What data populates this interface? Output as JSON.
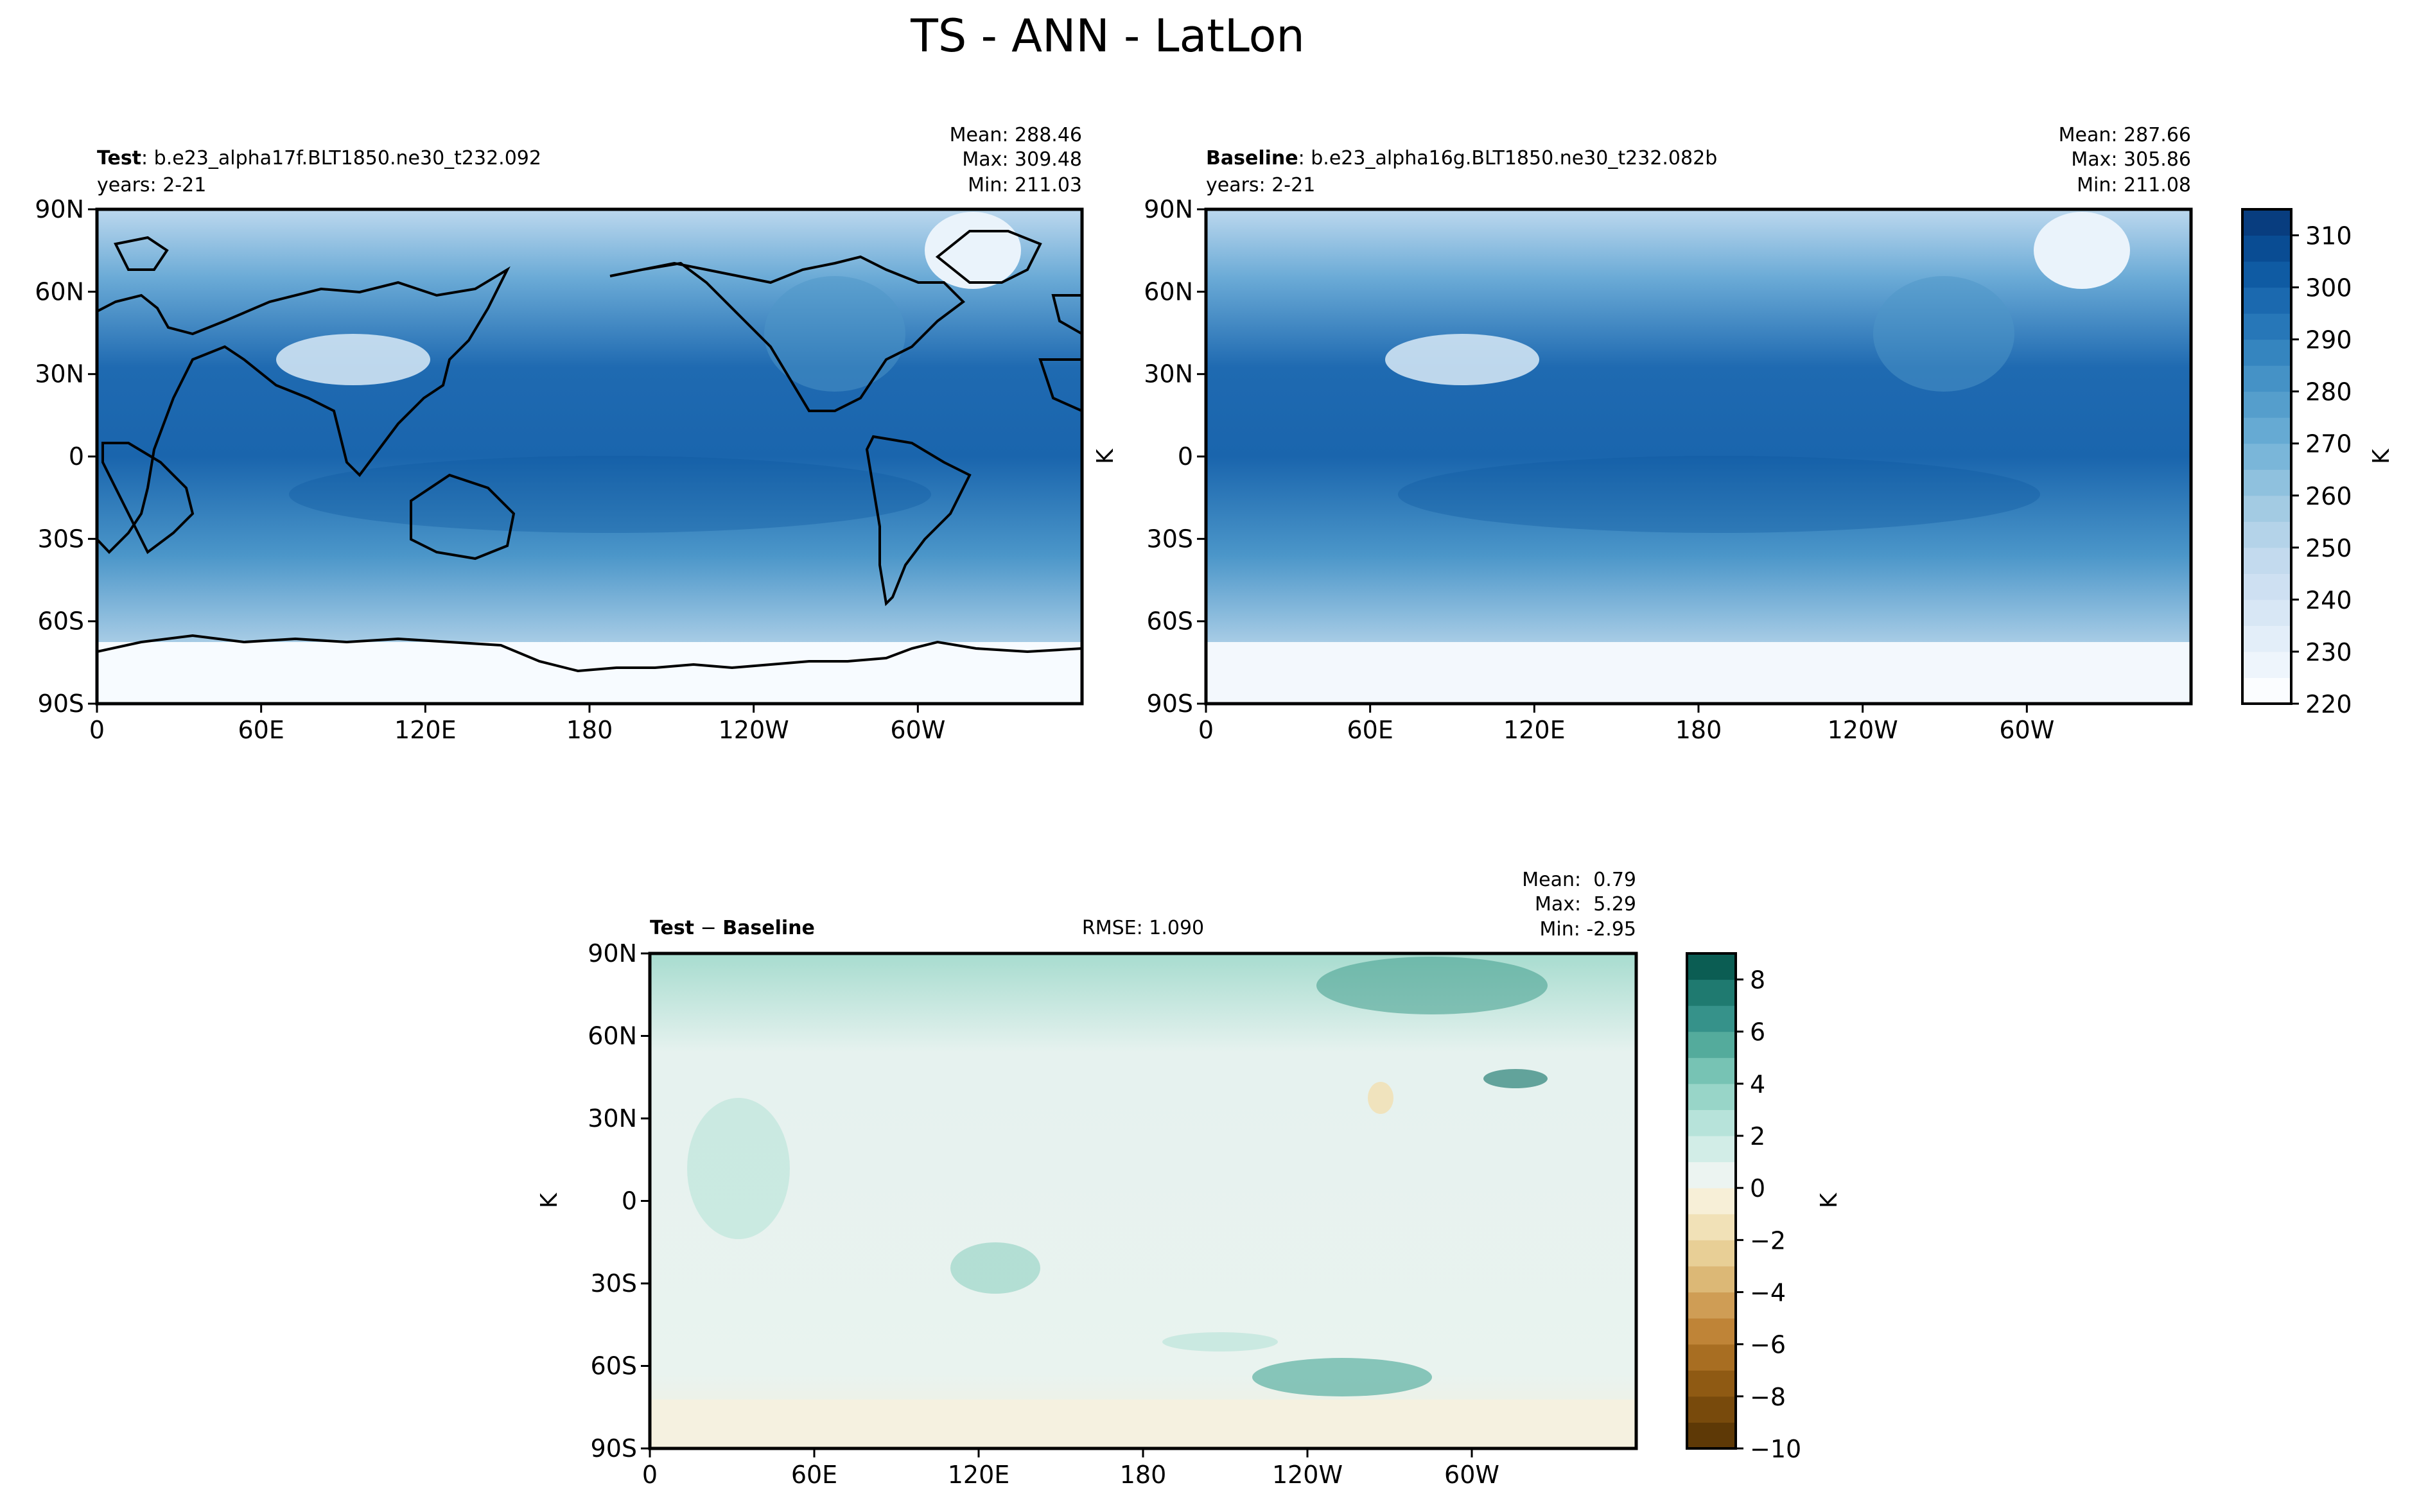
{
  "title": "TS - ANN - LatLon",
  "panels": {
    "test": {
      "label_bold": "Test",
      "label_rest": ": b.e23_alpha17f.BLT1850.ne30_t232.092",
      "years": "years: 2-21",
      "mean": "Mean: 288.46",
      "max": "Max: 309.48",
      "min": "Min: 211.03"
    },
    "baseline": {
      "label_bold": "Baseline",
      "label_rest": ": b.e23_alpha16g.BLT1850.ne30_t232.082b",
      "years": "years: 2-21",
      "mean": "Mean: 287.66",
      "max": "Max: 305.86",
      "min": "Min: 211.08",
      "ylabel": "K"
    },
    "diff": {
      "label_bold_a": "Test",
      "label_sep": " − ",
      "label_bold_b": "Baseline",
      "rmse": "RMSE: 1.090",
      "mean": "Mean:  0.79",
      "max": "Max:  5.29",
      "min": "Min: -2.95",
      "ylabel": "K"
    }
  },
  "axes": {
    "lon_ticks": [
      "0",
      "60E",
      "120E",
      "180",
      "120W",
      "60W"
    ],
    "lat_ticks": [
      "90N",
      "60N",
      "30N",
      "0",
      "30S",
      "60S",
      "90S"
    ]
  },
  "colorbars": {
    "abs": {
      "label": "K",
      "ticks": [
        "220",
        "230",
        "240",
        "250",
        "260",
        "270",
        "280",
        "290",
        "300",
        "310"
      ],
      "levels": [
        220,
        225,
        230,
        235,
        240,
        245,
        250,
        255,
        260,
        265,
        270,
        275,
        280,
        285,
        290,
        295,
        300,
        305,
        310,
        315
      ],
      "colors": [
        "#fbfdff",
        "#eef5fc",
        "#e3eef9",
        "#d8e7f5",
        "#cee0f2",
        "#c3daee",
        "#b4d3e9",
        "#a3cbe3",
        "#8fc1de",
        "#7ab6d9",
        "#66aad3",
        "#559ecc",
        "#4592c6",
        "#3585bf",
        "#2777b8",
        "#1b69af",
        "#0f5ba3",
        "#094c93",
        "#083d7f"
      ]
    },
    "diff": {
      "label": "K",
      "ticks": [
        "8",
        "6",
        "4",
        "2",
        "0",
        "−2",
        "−4",
        "−6",
        "−8",
        "−10"
      ],
      "levels": [
        -10,
        -9,
        -8,
        -7,
        -6,
        -5,
        -4,
        -3,
        -2,
        -1,
        0,
        1,
        2,
        3,
        4,
        5,
        6,
        7,
        8,
        9
      ],
      "colors": [
        "#5e3906",
        "#784a0c",
        "#8f5a13",
        "#a86e22",
        "#bf8437",
        "#cf9d55",
        "#dcb876",
        "#e8cf96",
        "#f1e1b7",
        "#f7efd7",
        "#ecf4f1",
        "#d2ede7",
        "#b7e3da",
        "#98d5c8",
        "#77c3b4",
        "#54ab9c",
        "#36928a",
        "#1f7a70",
        "#0b5d53"
      ]
    }
  },
  "chart_data": [
    {
      "type": "heatmap",
      "title": "Test: b.e23_alpha17f.BLT1850.ne30_t232.092",
      "variable": "TS",
      "units": "K",
      "years": "2-21",
      "stats": {
        "mean": 288.46,
        "max": 309.48,
        "min": 211.03
      },
      "xlim": [
        0,
        360
      ],
      "ylim": [
        -90,
        90
      ],
      "colorbar_range": [
        220,
        315
      ]
    },
    {
      "type": "heatmap",
      "title": "Baseline: b.e23_alpha16g.BLT1850.ne30_t232.082b",
      "variable": "TS",
      "units": "K",
      "years": "2-21",
      "stats": {
        "mean": 287.66,
        "max": 305.86,
        "min": 211.08
      },
      "xlim": [
        0,
        360
      ],
      "ylim": [
        -90,
        90
      ],
      "colorbar_range": [
        220,
        315
      ]
    },
    {
      "type": "heatmap",
      "title": "Test - Baseline",
      "variable": "TS",
      "units": "K",
      "stats": {
        "mean": 0.79,
        "max": 5.29,
        "min": -2.95,
        "rmse": 1.09
      },
      "xlim": [
        0,
        360
      ],
      "ylim": [
        -90,
        90
      ],
      "colorbar_range": [
        -10,
        9
      ]
    }
  ]
}
